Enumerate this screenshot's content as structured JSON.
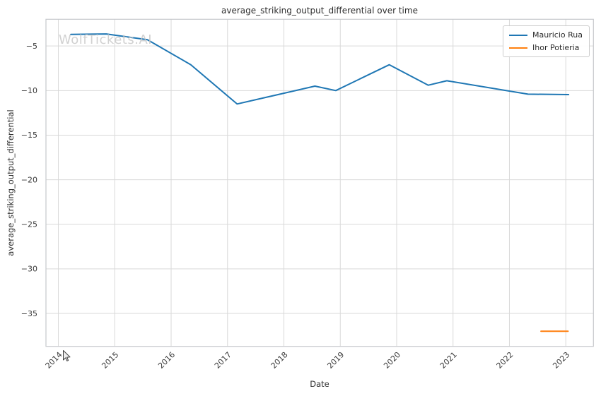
{
  "figure": {
    "watermark": "WolfTickets.AI"
  },
  "chart_data": {
    "type": "line",
    "title": "average_striking_output_differential over time",
    "xlabel": "Date",
    "ylabel": "average_striking_output_differential",
    "xlim": [
      2013.78,
      2023.49
    ],
    "ylim": [
      -38.7,
      -2.0
    ],
    "x_ticks": [
      2014,
      2015,
      2016,
      2017,
      2018,
      2019,
      2020,
      2021,
      2022,
      2023
    ],
    "y_ticks": [
      -5,
      -10,
      -15,
      -20,
      -25,
      -30,
      -35
    ],
    "grid": true,
    "legend_position": "upper-right",
    "series": [
      {
        "name": "Mauricio Rua",
        "color": "#1f77b4",
        "x": [
          2014.22,
          2014.85,
          2015.58,
          2016.35,
          2017.17,
          2018.55,
          2018.92,
          2019.87,
          2020.56,
          2020.89,
          2022.33,
          2023.05
        ],
        "y": [
          -3.7,
          -3.65,
          -4.3,
          -7.1,
          -11.5,
          -9.5,
          -10.0,
          -7.1,
          -9.4,
          -8.9,
          -10.4,
          -10.45
        ]
      },
      {
        "name": "Ihor Potieria",
        "color": "#ff7f0e",
        "x": [
          2022.56,
          2023.04
        ],
        "y": [
          -37.0,
          -37.0
        ]
      }
    ]
  },
  "legend": {
    "items": [
      {
        "label": "Mauricio Rua",
        "color": "#1f77b4"
      },
      {
        "label": "Ihor Potieria",
        "color": "#ff7f0e"
      }
    ]
  },
  "style": {
    "grid_color": "#d9d9d9",
    "spine_color": "#c6c9cc",
    "text_color": "#3a3a3a",
    "watermark_color": "#c9c9c9",
    "background": "#ffffff"
  }
}
